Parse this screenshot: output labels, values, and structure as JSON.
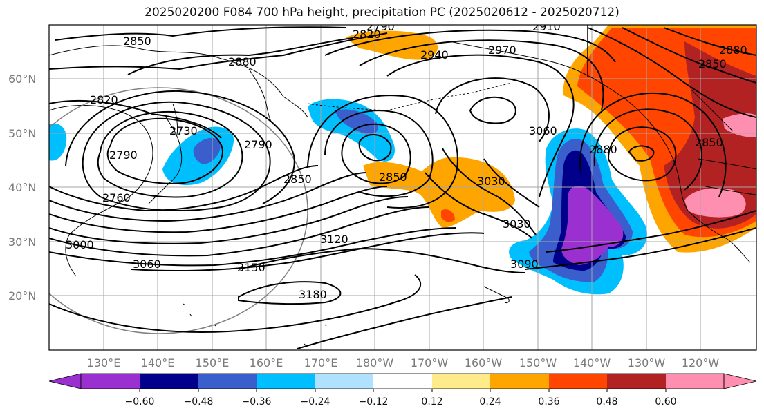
{
  "title": "2025020200 F084 700 hPa height, precipitation PC (2025020612 - 2025020712)",
  "latitude_labels": [
    "20°N",
    "30°N",
    "40°N",
    "50°N",
    "60°N"
  ],
  "longitude_labels": [
    "130°E",
    "140°E",
    "150°E",
    "160°E",
    "170°E",
    "180°W",
    "170°W",
    "160°W",
    "150°W",
    "140°W",
    "130°W",
    "120°W"
  ],
  "contour_labels": [
    "2850",
    "2820",
    "2790",
    "2910",
    "2880",
    "2940",
    "2970",
    "2820",
    "2730",
    "2790",
    "2790",
    "2850",
    "2850",
    "2760",
    "3000",
    "3060",
    "3120",
    "3150",
    "3180",
    "3030",
    "3030",
    "3060",
    "3090",
    "2880",
    "2850",
    "2850",
    "2880"
  ],
  "colorbar": {
    "colors": [
      "#9b30d0",
      "#00008b",
      "#3a5fcd",
      "#00bfff",
      "#b0e2ff",
      "#ffffff",
      "#ffeb8a",
      "#ffa500",
      "#ff4500",
      "#b22222",
      "#ff8fb1"
    ],
    "tick_labels": [
      "−0.60",
      "−0.48",
      "−0.36",
      "−0.24",
      "−0.12",
      "0.12",
      "0.24",
      "0.36",
      "0.48",
      "0.60"
    ]
  },
  "colors": {
    "grid": "#a6a6a6",
    "contour": "#000000",
    "circle": "#808080"
  }
}
